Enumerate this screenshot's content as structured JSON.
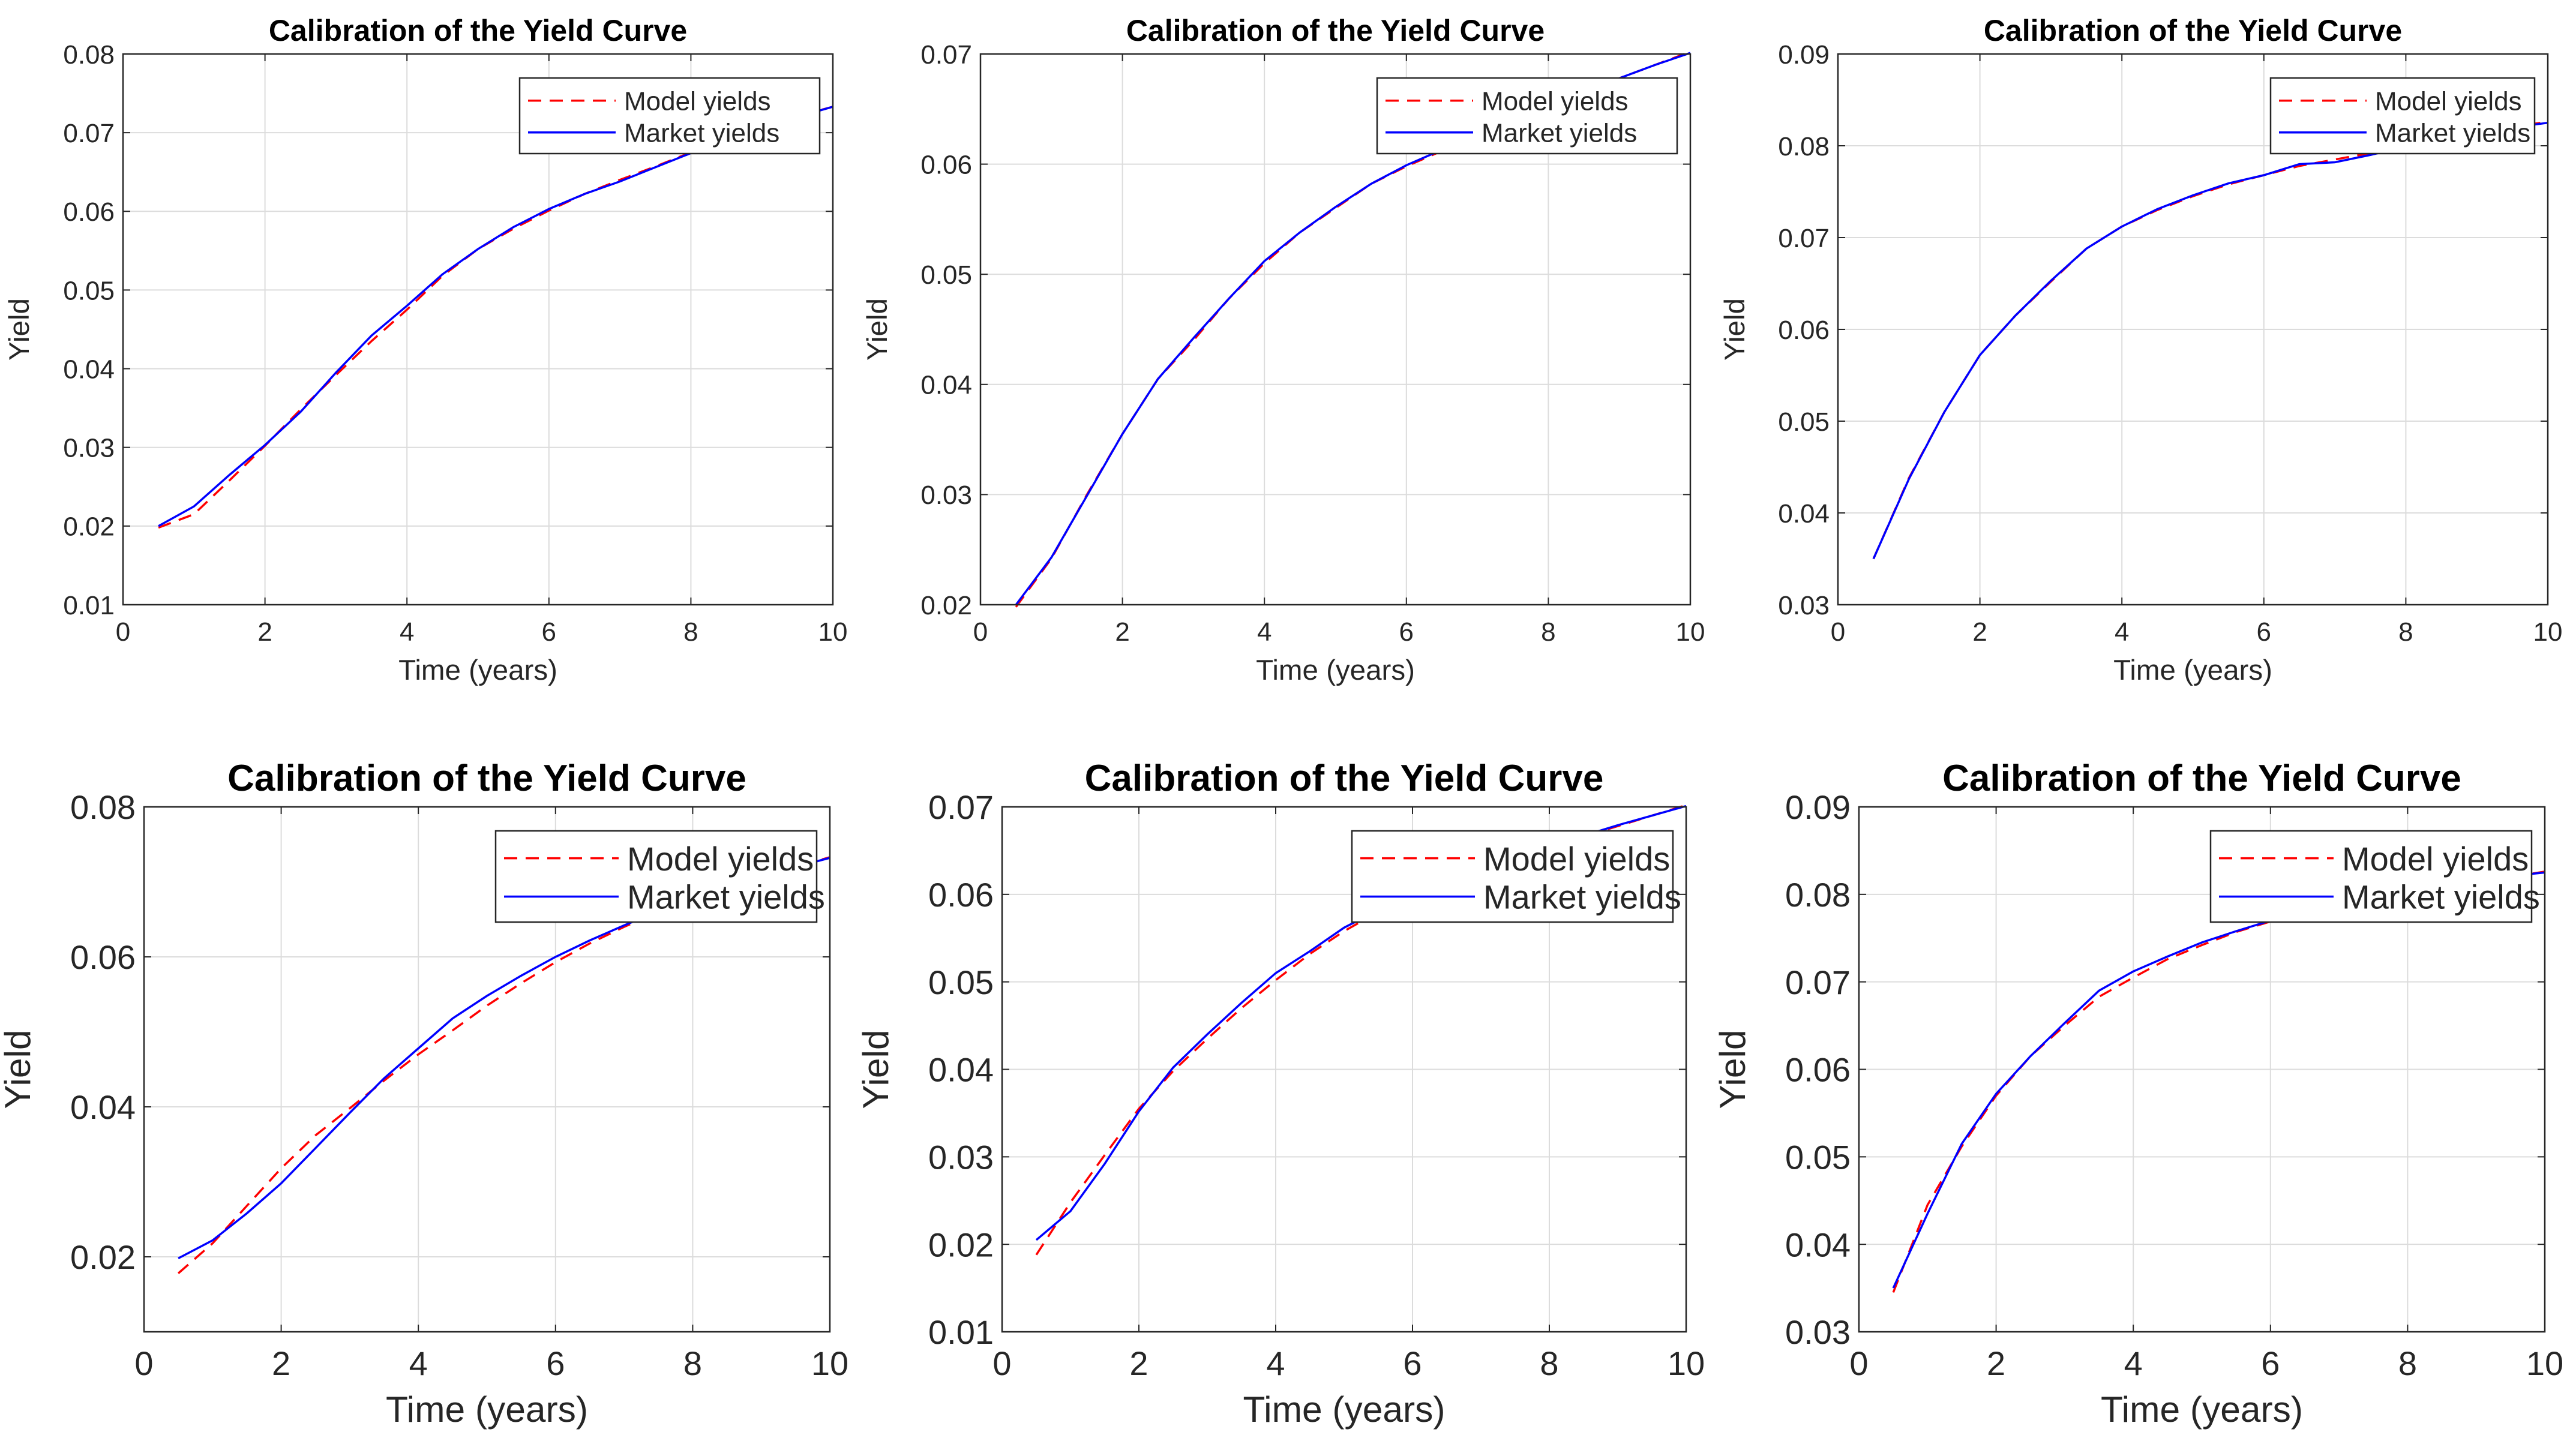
{
  "colors": {
    "model_line": "#ff0000",
    "market_line": "#0000ff",
    "grid": "#dcdcdc",
    "axes": "#262626",
    "background": "#ffffff"
  },
  "chart_data": [
    {
      "type": "line",
      "title": "Calibration of the Yield Curve",
      "xlabel": "Time (years)",
      "ylabel": "Yield",
      "xlim": [
        0,
        10
      ],
      "ylim": [
        0.01,
        0.08
      ],
      "xticks": [
        "0",
        "2",
        "4",
        "6",
        "8",
        "10"
      ],
      "yticks": [
        "0.01",
        "0.02",
        "0.03",
        "0.04",
        "0.05",
        "0.06",
        "0.07",
        "0.08"
      ],
      "grid": true,
      "legend_position": "top-right",
      "x": [
        0.5,
        1,
        1.5,
        2,
        2.5,
        3,
        3.5,
        4,
        4.5,
        5,
        5.5,
        6,
        6.5,
        7,
        7.5,
        8,
        8.5,
        9,
        9.5,
        10
      ],
      "series": [
        {
          "name": "Model yields",
          "style": "dashed",
          "values": [
            0.0198,
            0.0215,
            0.0258,
            0.0302,
            0.0348,
            0.0392,
            0.0435,
            0.0475,
            0.0518,
            0.0552,
            0.0578,
            0.0601,
            0.0622,
            0.064,
            0.0657,
            0.0675,
            0.0692,
            0.0708,
            0.0721,
            0.0733
          ]
        },
        {
          "name": "Market yields",
          "style": "solid",
          "values": [
            0.02,
            0.0225,
            0.0265,
            0.0303,
            0.0345,
            0.0395,
            0.0442,
            0.048,
            0.052,
            0.0552,
            0.058,
            0.0603,
            0.0622,
            0.0638,
            0.0656,
            0.0674,
            0.0691,
            0.0707,
            0.072,
            0.0733
          ]
        }
      ]
    },
    {
      "type": "line",
      "title": "Calibration of the Yield Curve",
      "xlabel": "Time (years)",
      "ylabel": "Yield",
      "xlim": [
        0,
        10
      ],
      "ylim": [
        0.02,
        0.07
      ],
      "xticks": [
        "0",
        "2",
        "4",
        "6",
        "8",
        "10"
      ],
      "yticks": [
        "0.02",
        "0.03",
        "0.04",
        "0.05",
        "0.06",
        "0.07"
      ],
      "grid": true,
      "legend_position": "top-right",
      "x": [
        0.5,
        1,
        1.5,
        2,
        2.5,
        3,
        3.5,
        4,
        4.5,
        5,
        5.5,
        6,
        6.5,
        7,
        7.5,
        8,
        8.5,
        9,
        9.5,
        10
      ],
      "series": [
        {
          "name": "Model yields",
          "style": "dashed",
          "values": [
            0.0198,
            0.0242,
            0.03,
            0.0355,
            0.0405,
            0.044,
            0.0478,
            0.051,
            0.0538,
            0.056,
            0.0582,
            0.0598,
            0.0612,
            0.0626,
            0.064,
            0.0653,
            0.0666,
            0.0678,
            0.069,
            0.0702
          ]
        },
        {
          "name": "Market yields",
          "style": "solid",
          "values": [
            0.02,
            0.0243,
            0.0299,
            0.0355,
            0.0405,
            0.0442,
            0.0478,
            0.0512,
            0.0538,
            0.0561,
            0.0582,
            0.0599,
            0.0613,
            0.0627,
            0.064,
            0.0653,
            0.0666,
            0.0678,
            0.069,
            0.0701
          ]
        }
      ]
    },
    {
      "type": "line",
      "title": "Calibration of the Yield Curve",
      "xlabel": "Time (years)",
      "ylabel": "Yield",
      "xlim": [
        0,
        10
      ],
      "ylim": [
        0.03,
        0.09
      ],
      "xticks": [
        "0",
        "2",
        "4",
        "6",
        "8",
        "10"
      ],
      "yticks": [
        "0.03",
        "0.04",
        "0.05",
        "0.06",
        "0.07",
        "0.08",
        "0.09"
      ],
      "grid": true,
      "legend_position": "top-right",
      "x": [
        0.5,
        1,
        1.5,
        2,
        2.5,
        3,
        3.5,
        4,
        4.5,
        5,
        5.5,
        6,
        6.5,
        7,
        7.5,
        8,
        8.5,
        9,
        9.5,
        10
      ],
      "series": [
        {
          "name": "Model yields",
          "style": "dashed",
          "values": [
            0.035,
            0.0438,
            0.051,
            0.0572,
            0.0615,
            0.0652,
            0.0688,
            0.0712,
            0.073,
            0.0745,
            0.0758,
            0.0768,
            0.0778,
            0.0785,
            0.0792,
            0.08,
            0.0808,
            0.0815,
            0.0821,
            0.0826
          ]
        },
        {
          "name": "Market yields",
          "style": "solid",
          "values": [
            0.035,
            0.0437,
            0.051,
            0.0572,
            0.0615,
            0.0653,
            0.0688,
            0.0712,
            0.0731,
            0.0746,
            0.0759,
            0.0768,
            0.078,
            0.0782,
            0.079,
            0.0799,
            0.0807,
            0.0814,
            0.082,
            0.0825
          ]
        }
      ]
    },
    {
      "type": "line",
      "title": "Calibration of the Yield Curve",
      "xlabel": "Time (years)",
      "ylabel": "Yield",
      "xlim": [
        0,
        10
      ],
      "ylim": [
        0.01,
        0.08
      ],
      "xticks": [
        "0",
        "2",
        "4",
        "6",
        "8",
        "10"
      ],
      "yticks": [
        "0.02",
        "0.04",
        "0.06",
        "0.08"
      ],
      "grid": true,
      "legend_position": "top-right",
      "x": [
        0.5,
        1,
        1.5,
        2,
        2.5,
        3,
        3.5,
        4,
        4.5,
        5,
        5.5,
        6,
        6.5,
        7,
        7.5,
        8,
        8.5,
        9,
        9.5,
        10
      ],
      "series": [
        {
          "name": "Model yields",
          "style": "dashed",
          "values": [
            0.0178,
            0.0218,
            0.0268,
            0.0318,
            0.0362,
            0.0398,
            0.0435,
            0.047,
            0.0502,
            0.0535,
            0.0565,
            0.0593,
            0.0618,
            0.064,
            0.066,
            0.0678,
            0.0694,
            0.0708,
            0.072,
            0.0733
          ]
        },
        {
          "name": "Market yields",
          "style": "solid",
          "values": [
            0.0198,
            0.0222,
            0.0258,
            0.0298,
            0.0345,
            0.0392,
            0.0438,
            0.0478,
            0.0518,
            0.0548,
            0.0575,
            0.06,
            0.0622,
            0.0642,
            0.0661,
            0.0678,
            0.0694,
            0.0708,
            0.072,
            0.0732
          ]
        }
      ]
    },
    {
      "type": "line",
      "title": "Calibration of the Yield Curve",
      "xlabel": "Time (years)",
      "ylabel": "Yield",
      "xlim": [
        0,
        10
      ],
      "ylim": [
        0.01,
        0.07
      ],
      "xticks": [
        "0",
        "2",
        "4",
        "6",
        "8",
        "10"
      ],
      "yticks": [
        "0.01",
        "0.02",
        "0.03",
        "0.04",
        "0.05",
        "0.06",
        "0.07"
      ],
      "grid": true,
      "legend_position": "top-right",
      "x": [
        0.5,
        1,
        1.5,
        2,
        2.5,
        3,
        3.5,
        4,
        4.5,
        5,
        5.5,
        6,
        6.5,
        7,
        7.5,
        8,
        8.5,
        9,
        9.5,
        10
      ],
      "series": [
        {
          "name": "Model yields",
          "style": "dashed",
          "values": [
            0.0188,
            0.0248,
            0.0302,
            0.0355,
            0.0398,
            0.0435,
            0.047,
            0.0502,
            0.0532,
            0.0558,
            0.058,
            0.0598,
            0.0613,
            0.0627,
            0.064,
            0.0653,
            0.0666,
            0.0678,
            0.069,
            0.0702
          ]
        },
        {
          "name": "Market yields",
          "style": "solid",
          "values": [
            0.0205,
            0.0238,
            0.0292,
            0.0352,
            0.0402,
            0.044,
            0.0476,
            0.051,
            0.0535,
            0.0562,
            0.0582,
            0.0599,
            0.0614,
            0.0628,
            0.0641,
            0.0654,
            0.0667,
            0.0679,
            0.069,
            0.0701
          ]
        }
      ]
    },
    {
      "type": "line",
      "title": "Calibration of the Yield Curve",
      "xlabel": "Time (years)",
      "ylabel": "Yield",
      "xlim": [
        0,
        10
      ],
      "ylim": [
        0.03,
        0.09
      ],
      "xticks": [
        "0",
        "2",
        "4",
        "6",
        "8",
        "10"
      ],
      "yticks": [
        "0.03",
        "0.04",
        "0.05",
        "0.06",
        "0.07",
        "0.08",
        "0.09"
      ],
      "grid": true,
      "legend_position": "top-right",
      "x": [
        0.5,
        1,
        1.5,
        2,
        2.5,
        3,
        3.5,
        4,
        4.5,
        5,
        5.5,
        6,
        6.5,
        7,
        7.5,
        8,
        8.5,
        9,
        9.5,
        10
      ],
      "series": [
        {
          "name": "Model yields",
          "style": "dashed",
          "values": [
            0.0345,
            0.0445,
            0.0512,
            0.057,
            0.0615,
            0.065,
            0.0683,
            0.0705,
            0.0726,
            0.0742,
            0.0757,
            0.0769,
            0.0779,
            0.0787,
            0.0795,
            0.0802,
            0.0809,
            0.0815,
            0.082,
            0.0826
          ]
        },
        {
          "name": "Market yields",
          "style": "solid",
          "values": [
            0.035,
            0.0435,
            0.0515,
            0.0572,
            0.0615,
            0.0653,
            0.069,
            0.0712,
            0.0729,
            0.0745,
            0.0758,
            0.077,
            0.078,
            0.0788,
            0.0796,
            0.0803,
            0.081,
            0.0815,
            0.0821,
            0.0825
          ]
        }
      ]
    }
  ]
}
